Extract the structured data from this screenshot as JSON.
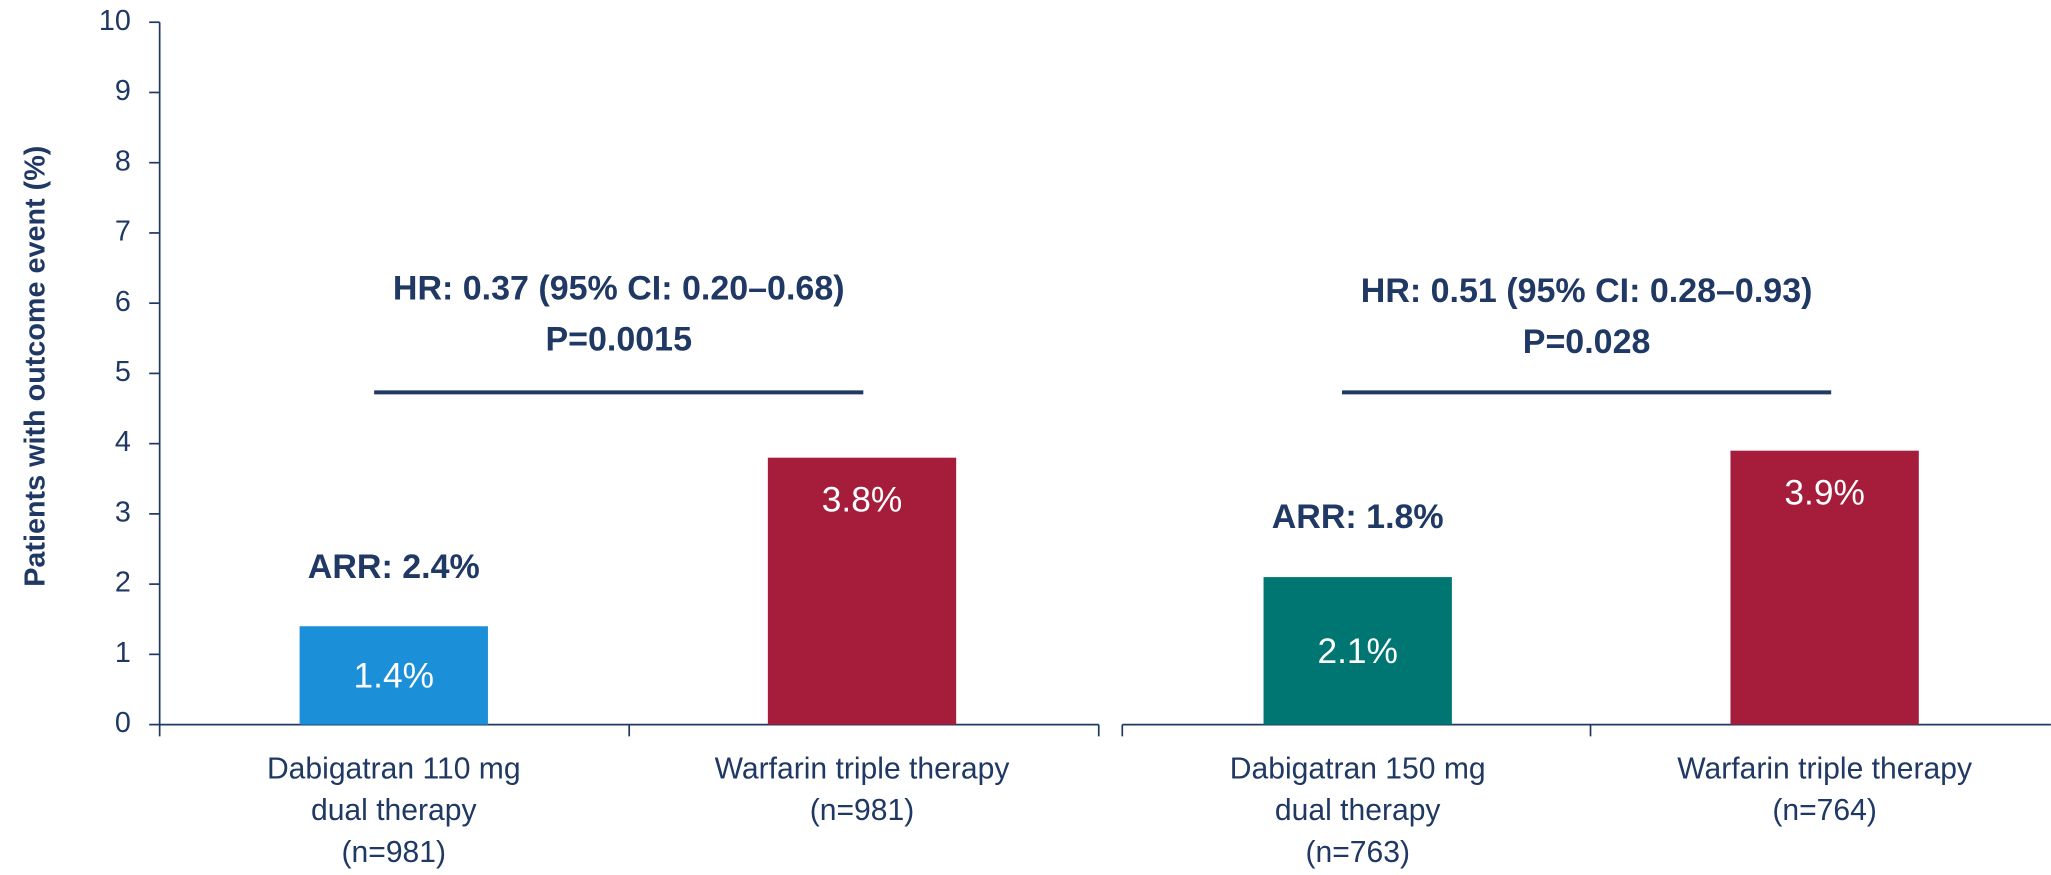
{
  "chart_data": {
    "type": "bar",
    "y_label": "Patients with outcome event (%)",
    "categories": [
      "Dabigatran 110 mg\ndual therapy\n(n=981)",
      "Warfarin triple therapy\n(n=981)",
      "Dabigatran 150 mg\ndual therapy\n(n=763)",
      "Warfarin triple therapy\n(n=764)"
    ],
    "values": [
      1.4,
      3.8,
      2.1,
      3.9
    ],
    "value_labels": [
      "1.4%",
      "3.8%",
      "2.1%",
      "3.9%"
    ],
    "colors": [
      "#1b8fd8",
      "#a51d3b",
      "#007672",
      "#a51d3b"
    ],
    "ylim": [
      0,
      10
    ],
    "yticks": [
      0,
      1,
      2,
      3,
      4,
      5,
      6,
      7,
      8,
      9,
      10
    ],
    "annotations": [
      "HR: 0.37 (95% CI: 0.20–0.68)\nP=0.0015",
      "ARR: 2.4%",
      "HR: 0.51 (95% CI: 0.28–0.93)\nP=0.028",
      "ARR: 1.8%"
    ]
  }
}
